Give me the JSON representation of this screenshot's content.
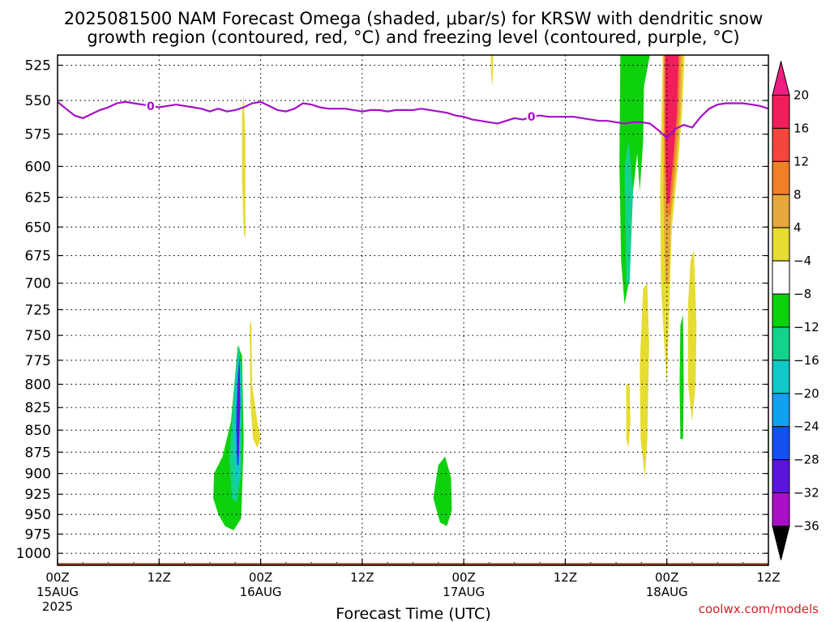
{
  "chart_data": {
    "type": "heatmap",
    "title_lines": [
      "2025081500 NAM Forecast Omega (shaded, μbar/s) for KRSW with dendritic snow",
      "growth region (contoured, red, °C) and freezing level (contoured, purple, °C)"
    ],
    "xlabel": "Forecast Time (UTC)",
    "ylabel": "",
    "x_ticks": [
      {
        "hour": 0,
        "label": "00Z",
        "date": "15AUG",
        "year": "2025"
      },
      {
        "hour": 12,
        "label": "12Z"
      },
      {
        "hour": 24,
        "label": "00Z",
        "date": "16AUG"
      },
      {
        "hour": 36,
        "label": "12Z"
      },
      {
        "hour": 48,
        "label": "00Z",
        "date": "17AUG"
      },
      {
        "hour": 60,
        "label": "12Z"
      },
      {
        "hour": 72,
        "label": "00Z",
        "date": "18AUG"
      },
      {
        "hour": 84,
        "label": "12Z"
      }
    ],
    "xlim_hours": [
      0,
      84
    ],
    "y_ticks": [
      525,
      550,
      575,
      600,
      625,
      650,
      675,
      700,
      725,
      750,
      775,
      800,
      825,
      850,
      875,
      900,
      925,
      950,
      975,
      1000
    ],
    "ylim_mb": [
      518,
      1016
    ],
    "y_log_scale": true,
    "grid": true,
    "colorbar": {
      "levels": [
        20,
        16,
        12,
        8,
        4,
        -4,
        -8,
        -12,
        -16,
        -20,
        -24,
        -28,
        -32,
        -36
      ],
      "colors": [
        "#f01e5a",
        "#f5463c",
        "#f07f28",
        "#e6a83c",
        "#e6dc32",
        "#ffffff",
        "#0ed10e",
        "#14d28c",
        "#11c8c8",
        "#12a0f0",
        "#1450f0",
        "#5a14dc",
        "#aa0fc8",
        "#a6a6a6"
      ],
      "top_color": "#f01e82",
      "bottom_color": "#000000"
    },
    "freezing_level": {
      "label": "0",
      "label_hours": [
        11,
        56
      ],
      "color": "#a50fc8",
      "points": [
        [
          0,
          551
        ],
        [
          1,
          556
        ],
        [
          2,
          561
        ],
        [
          3,
          563
        ],
        [
          4,
          560
        ],
        [
          5,
          557
        ],
        [
          6,
          555
        ],
        [
          7,
          552
        ],
        [
          8,
          551
        ],
        [
          9,
          552
        ],
        [
          10,
          553
        ],
        [
          11,
          554
        ],
        [
          12,
          555
        ],
        [
          13,
          554
        ],
        [
          14,
          553
        ],
        [
          15,
          554
        ],
        [
          16,
          555
        ],
        [
          17,
          556
        ],
        [
          18,
          558
        ],
        [
          19,
          556
        ],
        [
          20,
          558
        ],
        [
          21,
          557
        ],
        [
          22,
          555
        ],
        [
          23,
          552
        ],
        [
          24,
          551
        ],
        [
          25,
          554
        ],
        [
          26,
          557
        ],
        [
          27,
          558
        ],
        [
          28,
          556
        ],
        [
          29,
          552
        ],
        [
          30,
          553
        ],
        [
          31,
          555
        ],
        [
          32,
          556
        ],
        [
          33,
          556
        ],
        [
          34,
          556
        ],
        [
          35,
          557
        ],
        [
          36,
          558
        ],
        [
          37,
          557
        ],
        [
          38,
          557
        ],
        [
          39,
          558
        ],
        [
          40,
          557
        ],
        [
          41,
          557
        ],
        [
          42,
          557
        ],
        [
          43,
          556
        ],
        [
          44,
          557
        ],
        [
          45,
          558
        ],
        [
          46,
          559
        ],
        [
          47,
          561
        ],
        [
          48,
          562
        ],
        [
          49,
          564
        ],
        [
          50,
          565
        ],
        [
          51,
          566
        ],
        [
          52,
          567
        ],
        [
          53,
          565
        ],
        [
          54,
          563
        ],
        [
          55,
          564
        ],
        [
          56,
          562
        ],
        [
          57,
          561
        ],
        [
          58,
          562
        ],
        [
          59,
          562
        ],
        [
          60,
          562
        ],
        [
          61,
          562
        ],
        [
          62,
          563
        ],
        [
          63,
          564
        ],
        [
          64,
          565
        ],
        [
          65,
          565
        ],
        [
          66,
          566
        ],
        [
          67,
          567
        ],
        [
          68,
          566
        ],
        [
          69,
          566
        ],
        [
          70,
          567
        ],
        [
          71,
          572
        ],
        [
          72,
          578
        ],
        [
          73,
          571
        ],
        [
          74,
          568
        ],
        [
          75,
          570
        ],
        [
          76,
          562
        ],
        [
          77,
          556
        ],
        [
          78,
          553
        ],
        [
          79,
          552
        ],
        [
          80,
          552
        ],
        [
          81,
          552
        ],
        [
          82,
          553
        ],
        [
          83,
          554
        ],
        [
          84,
          556
        ]
      ]
    },
    "terrain_color": "#a0522d",
    "omega_regions": [
      {
        "level": -4,
        "poly": [
          [
            16,
            875
          ],
          [
            17,
            858
          ],
          [
            17.8,
            836
          ],
          [
            19,
            838
          ],
          [
            19.8,
            855
          ],
          [
            20.5,
            920
          ],
          [
            21,
            645
          ],
          [
            21.6,
            645
          ],
          [
            22,
            700
          ],
          [
            22.4,
            820
          ],
          [
            22.4,
            935
          ],
          [
            21.5,
            975
          ],
          [
            20.5,
            990
          ],
          [
            19.5,
            988
          ],
          [
            18.5,
            972
          ],
          [
            17.5,
            950
          ],
          [
            16.6,
            930
          ],
          [
            16,
            905
          ]
        ]
      },
      {
        "level": -8,
        "poly": [
          [
            18.5,
            900
          ],
          [
            19.5,
            880
          ],
          [
            20.5,
            840
          ],
          [
            21.3,
            760
          ],
          [
            21.8,
            770
          ],
          [
            22,
            860
          ],
          [
            21.7,
            955
          ],
          [
            20.8,
            970
          ],
          [
            19.8,
            965
          ],
          [
            19,
            950
          ],
          [
            18.4,
            930
          ]
        ]
      },
      {
        "level": -12,
        "poly": [
          [
            20.3,
            885
          ],
          [
            20.9,
            800
          ],
          [
            21.4,
            760
          ],
          [
            21.8,
            790
          ],
          [
            21.7,
            900
          ],
          [
            21.2,
            935
          ],
          [
            20.6,
            930
          ]
        ]
      },
      {
        "level": -16,
        "poly": [
          [
            20.8,
            860
          ],
          [
            21.1,
            790
          ],
          [
            21.5,
            760
          ],
          [
            21.7,
            810
          ],
          [
            21.5,
            900
          ],
          [
            21.1,
            920
          ]
        ]
      },
      {
        "level": -24,
        "poly": [
          [
            21.1,
            840
          ],
          [
            21.3,
            790
          ],
          [
            21.5,
            770
          ],
          [
            21.6,
            820
          ],
          [
            21.4,
            890
          ],
          [
            21.2,
            890
          ]
        ]
      },
      {
        "level": -28,
        "poly": [
          [
            21.2,
            830
          ],
          [
            21.35,
            790
          ],
          [
            21.5,
            775
          ],
          [
            21.55,
            820
          ],
          [
            21.4,
            880
          ],
          [
            21.25,
            880
          ]
        ]
      },
      {
        "level": 4,
        "poly": [
          [
            21.8,
            560
          ],
          [
            22.0,
            545
          ],
          [
            22.2,
            580
          ],
          [
            22.2,
            660
          ],
          [
            22.0,
            655
          ],
          [
            21.8,
            610
          ]
        ]
      },
      {
        "level": 4,
        "poly": [
          [
            22.7,
            740
          ],
          [
            22.9,
            735
          ],
          [
            23.0,
            800
          ],
          [
            23.6,
            840
          ],
          [
            24.0,
            860
          ],
          [
            23.6,
            870
          ],
          [
            23.1,
            860
          ],
          [
            22.8,
            820
          ]
        ]
      },
      {
        "level": -4,
        "poly": [
          [
            43.5,
            920
          ],
          [
            44.5,
            850
          ],
          [
            45.5,
            840
          ],
          [
            46.5,
            855
          ],
          [
            47,
            880
          ],
          [
            47.2,
            930
          ],
          [
            47,
            975
          ],
          [
            46,
            990
          ],
          [
            45,
            985
          ],
          [
            44,
            960
          ]
        ]
      },
      {
        "level": -8,
        "poly": [
          [
            44.4,
            930
          ],
          [
            45,
            890
          ],
          [
            45.8,
            880
          ],
          [
            46.5,
            905
          ],
          [
            46.6,
            945
          ],
          [
            46,
            965
          ],
          [
            45.2,
            960
          ]
        ]
      },
      {
        "level": 4,
        "poly": [
          [
            51.2,
            518
          ],
          [
            51.5,
            518
          ],
          [
            51.4,
            540
          ],
          [
            51.2,
            530
          ]
        ]
      },
      {
        "level": -4,
        "poly": [
          [
            64.2,
            518
          ],
          [
            70.5,
            518
          ],
          [
            69.5,
            540
          ],
          [
            69.5,
            600
          ],
          [
            69.0,
            640
          ],
          [
            68.7,
            660
          ],
          [
            68.5,
            610
          ],
          [
            68.2,
            640
          ],
          [
            67.8,
            740
          ],
          [
            67.6,
            760
          ],
          [
            67.5,
            800
          ],
          [
            66.8,
            830
          ],
          [
            66.0,
            815
          ],
          [
            64.5,
            790
          ],
          [
            64.3,
            700
          ]
        ]
      },
      {
        "level": -8,
        "poly": [
          [
            66.5,
            518
          ],
          [
            70.0,
            518
          ],
          [
            69.3,
            540
          ],
          [
            69.2,
            580
          ],
          [
            68.8,
            620
          ],
          [
            68.5,
            590
          ],
          [
            68.0,
            620
          ],
          [
            67.5,
            700
          ],
          [
            67.0,
            720
          ],
          [
            66.6,
            680
          ],
          [
            66.4,
            600
          ]
        ]
      },
      {
        "level": -12,
        "poly": [
          [
            67.0,
            600
          ],
          [
            67.5,
            580
          ],
          [
            68.0,
            620
          ],
          [
            67.6,
            700
          ],
          [
            67.2,
            700
          ]
        ]
      },
      {
        "level": 4,
        "poly": [
          [
            71.5,
            518
          ],
          [
            74.1,
            518
          ],
          [
            73.8,
            560
          ],
          [
            73.3,
            600
          ],
          [
            72.6,
            650
          ],
          [
            72.3,
            720
          ],
          [
            72.0,
            800
          ],
          [
            71.7,
            760
          ],
          [
            71.3,
            700
          ],
          [
            71.2,
            620
          ]
        ]
      },
      {
        "level": 8,
        "poly": [
          [
            71.6,
            518
          ],
          [
            73.8,
            518
          ],
          [
            73.6,
            560
          ],
          [
            73.1,
            600
          ],
          [
            72.5,
            640
          ],
          [
            72.2,
            700
          ],
          [
            71.8,
            700
          ],
          [
            71.6,
            620
          ]
        ]
      },
      {
        "level": 12,
        "poly": [
          [
            71.7,
            518
          ],
          [
            73.6,
            518
          ],
          [
            73.4,
            560
          ],
          [
            72.9,
            600
          ],
          [
            72.4,
            640
          ],
          [
            71.9,
            640
          ],
          [
            71.7,
            600
          ]
        ]
      },
      {
        "level": 20,
        "poly": [
          [
            71.8,
            518
          ],
          [
            73.4,
            518
          ],
          [
            73.2,
            560
          ],
          [
            72.8,
            590
          ],
          [
            72.3,
            630
          ],
          [
            72.0,
            630
          ],
          [
            71.8,
            580
          ]
        ]
      },
      {
        "level": 4,
        "poly": [
          [
            69.2,
            705
          ],
          [
            69.7,
            700
          ],
          [
            69.9,
            760
          ],
          [
            69.7,
            860
          ],
          [
            69.4,
            905
          ],
          [
            68.9,
            860
          ],
          [
            68.8,
            780
          ]
        ]
      },
      {
        "level": 4,
        "poly": [
          [
            67.2,
            800
          ],
          [
            67.6,
            800
          ],
          [
            67.7,
            840
          ],
          [
            67.5,
            870
          ],
          [
            67.2,
            860
          ]
        ]
      },
      {
        "level": 4,
        "poly": [
          [
            74.8,
            680
          ],
          [
            75.2,
            670
          ],
          [
            75.5,
            740
          ],
          [
            75.4,
            800
          ],
          [
            75.0,
            840
          ],
          [
            74.5,
            800
          ],
          [
            74.5,
            720
          ]
        ]
      },
      {
        "level": -4,
        "poly": [
          [
            73.4,
            700
          ],
          [
            73.8,
            690
          ],
          [
            74.2,
            760
          ],
          [
            74.2,
            880
          ],
          [
            74.0,
            950
          ],
          [
            73.4,
            950
          ],
          [
            73.2,
            850
          ],
          [
            73.2,
            760
          ]
        ]
      },
      {
        "level": -8,
        "poly": [
          [
            73.6,
            740
          ],
          [
            73.9,
            730
          ],
          [
            74.0,
            800
          ],
          [
            73.9,
            860
          ],
          [
            73.6,
            860
          ],
          [
            73.5,
            800
          ]
        ]
      }
    ],
    "watermark": "coolwx.com/models"
  }
}
